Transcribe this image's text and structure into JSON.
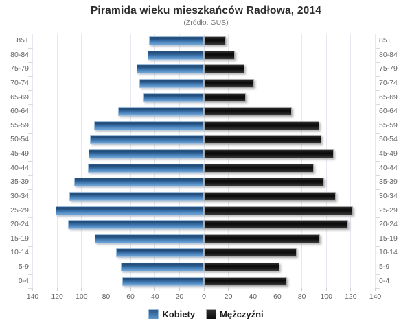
{
  "chart_data": {
    "type": "bar",
    "variant": "population_pyramid",
    "title": "Piramida wieku mieszkańców Radłowa, 2014",
    "subtitle": "(Źródło. GUS)",
    "categories": [
      "85+",
      "80-84",
      "75-79",
      "70-74",
      "65-69",
      "60-64",
      "55-59",
      "50-54",
      "45-49",
      "40-44",
      "35-39",
      "30-34",
      "25-29",
      "20-24",
      "15-19",
      "10-14",
      "5-9",
      "0-4"
    ],
    "series": [
      {
        "name": "Kobiety",
        "side": "left",
        "color": "#4a82ba",
        "values": [
          45,
          46,
          55,
          53,
          50,
          70,
          90,
          93,
          94,
          95,
          106,
          110,
          121,
          111,
          89,
          72,
          68,
          67
        ]
      },
      {
        "name": "Mężczyźni",
        "side": "right",
        "color": "#141414",
        "values": [
          18,
          25,
          33,
          41,
          34,
          72,
          94,
          96,
          106,
          90,
          98,
          108,
          122,
          118,
          95,
          76,
          62,
          68
        ]
      }
    ],
    "x_axis": {
      "tick_labels": [
        "140",
        "120",
        "100",
        "80",
        "60",
        "40",
        "20",
        "0",
        "20",
        "40",
        "60",
        "80",
        "100",
        "120",
        "140"
      ],
      "tick_values": [
        -140,
        -120,
        -100,
        -80,
        -60,
        -40,
        -20,
        0,
        20,
        40,
        60,
        80,
        100,
        120,
        140
      ],
      "max_per_side": 140,
      "grid": true
    },
    "y_axis": {
      "labels_on_both_sides": true
    },
    "legend_position": "bottom"
  },
  "colors": {
    "female_bar": "#4a82ba",
    "male_bar": "#141414",
    "grid_line": "#e7e7f0",
    "axis_text": "#636363",
    "title_text": "#2d2d2d",
    "subtitle_text": "#737373",
    "background": "#ffffff"
  }
}
